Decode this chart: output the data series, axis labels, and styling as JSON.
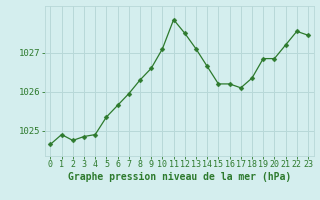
{
  "x": [
    0,
    1,
    2,
    3,
    4,
    5,
    6,
    7,
    8,
    9,
    10,
    11,
    12,
    13,
    14,
    15,
    16,
    17,
    18,
    19,
    20,
    21,
    22,
    23
  ],
  "y": [
    1024.65,
    1024.9,
    1024.75,
    1024.85,
    1024.9,
    1025.35,
    1025.65,
    1025.95,
    1026.3,
    1026.6,
    1027.1,
    1027.85,
    1027.5,
    1027.1,
    1026.65,
    1026.2,
    1026.2,
    1026.1,
    1026.35,
    1026.85,
    1026.85,
    1027.2,
    1027.55,
    1027.45
  ],
  "line_color": "#2d7a2d",
  "marker": "D",
  "marker_size": 2.5,
  "bg_color": "#d4eeee",
  "grid_color": "#b8d8d8",
  "title": "Graphe pression niveau de la mer (hPa)",
  "xlabel_ticks": [
    "0",
    "1",
    "2",
    "3",
    "4",
    "5",
    "6",
    "7",
    "8",
    "9",
    "10",
    "11",
    "12",
    "13",
    "14",
    "15",
    "16",
    "17",
    "18",
    "19",
    "20",
    "21",
    "22",
    "23"
  ],
  "ytick_labels": [
    "1025",
    "1026",
    "1027"
  ],
  "ytick_values": [
    1025,
    1026,
    1027
  ],
  "ylim": [
    1024.35,
    1028.2
  ],
  "xlim": [
    -0.5,
    23.5
  ],
  "tick_color": "#2d7a2d",
  "title_fontsize": 7.0,
  "tick_fontsize": 6.5
}
